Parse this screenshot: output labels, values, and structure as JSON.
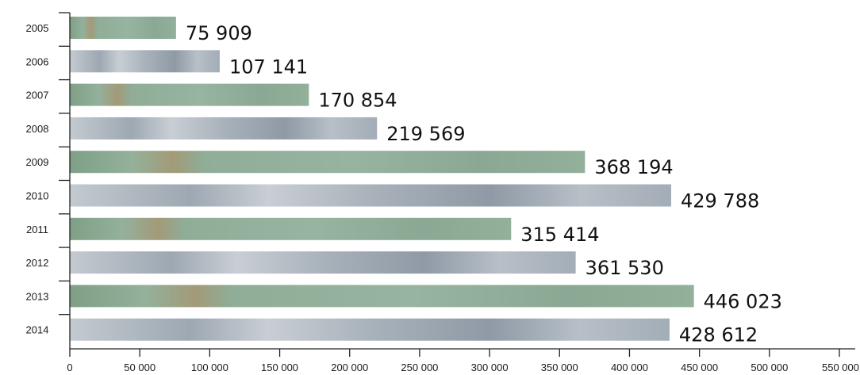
{
  "chart_data": {
    "type": "bar",
    "orientation": "horizontal",
    "title": "",
    "xlabel": "",
    "ylabel": "",
    "categories": [
      "2005",
      "2006",
      "2007",
      "2008",
      "2009",
      "2010",
      "2011",
      "2012",
      "2013",
      "2014"
    ],
    "values": [
      75909,
      107141,
      170854,
      219569,
      368194,
      429788,
      315414,
      361530,
      446023,
      428612
    ],
    "value_labels": [
      "75 909",
      "107 141",
      "170 854",
      "219 569",
      "368 194",
      "429 788",
      "315 414",
      "361 530",
      "446 023",
      "428 612"
    ],
    "xlim": [
      0,
      550000
    ],
    "x_ticks": [
      0,
      50000,
      100000,
      150000,
      200000,
      250000,
      300000,
      350000,
      400000,
      450000,
      500000,
      550000
    ],
    "x_tick_labels": [
      "0",
      "50 000",
      "100 000",
      "150 000",
      "200 000",
      "250 000",
      "300 000",
      "350 000",
      "400 000",
      "450 000",
      "500 000",
      "550 000"
    ],
    "grid": false,
    "legend": "none",
    "colors": {
      "green_bar": "#8fae99",
      "grey_bar": "#aab3bd"
    }
  }
}
